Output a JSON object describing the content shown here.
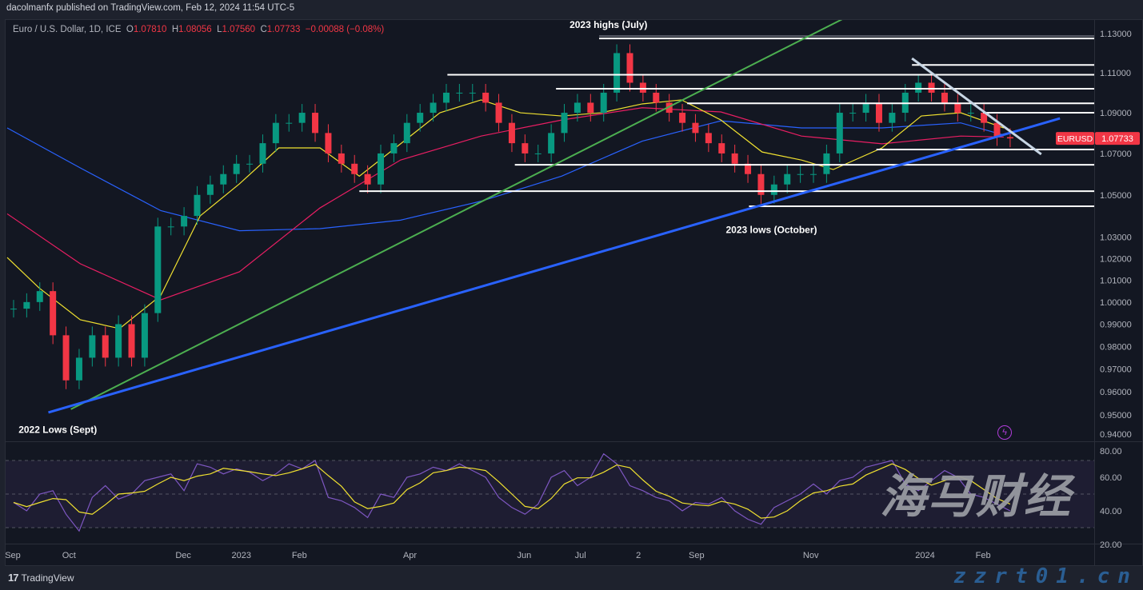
{
  "header": {
    "publisher": "dacolmanfx published on TradingView.com, Feb 12, 2024 11:54 UTC-5"
  },
  "legend": {
    "symbol": "Euro / U.S. Dollar, 1D, ICE",
    "o_label": "O",
    "o": "1.07810",
    "h_label": "H",
    "h": "1.08056",
    "l_label": "L",
    "l": "1.07560",
    "c_label": "C",
    "c": "1.07733",
    "change": "−0.00088 (−0.08%)"
  },
  "price_tag": {
    "symbol": "EURUSD",
    "value": "1.07733",
    "color": "#f23645"
  },
  "footer": {
    "brand": "TradingView",
    "logo": "17"
  },
  "watermark": {
    "cn": "海马财经",
    "site": "zzrt01.cn"
  },
  "colors": {
    "up": "#089981",
    "down": "#f23645",
    "ma_fast": "#f0e130",
    "ma_mid": "#e91e63",
    "ma_slow": "#2962ff",
    "rsi": "#7e57c2",
    "rsi_ma": "#f0e130",
    "trend_green": "#4caf50",
    "trend_blue": "#2962ff",
    "trend_white": "#c8d6e5"
  },
  "icons": {
    "bolt": "lightning-icon"
  },
  "chart_data": {
    "type": "candlestick",
    "symbol": "EURUSD",
    "y_scale": "log",
    "ylim": [
      0.94,
      1.13
    ],
    "y_ticks": [
      "1.13000",
      "1.11000",
      "1.09000",
      "1.07000",
      "1.05000",
      "1.03000",
      "1.02000",
      "1.01000",
      "1.00000",
      "0.99000",
      "0.98000",
      "0.97000",
      "0.96000",
      "0.95000",
      "0.94000"
    ],
    "x_ticks": [
      [
        "2022-09-01",
        "Sep"
      ],
      [
        "2022-10-01",
        "Oct"
      ],
      [
        "2022-12-01",
        "Dec"
      ],
      [
        "2023-01-01",
        "2023"
      ],
      [
        "2023-02-01",
        "Feb"
      ],
      [
        "2023-04-01",
        "Apr"
      ],
      [
        "2023-06-01",
        "Jun"
      ],
      [
        "2023-07-01",
        "Jul"
      ],
      [
        "2023-08-01",
        "2"
      ],
      [
        "2023-09-01",
        "Sep"
      ],
      [
        "2023-11-01",
        "Nov"
      ],
      [
        "2024-01-01",
        "2024"
      ],
      [
        "2024-02-01",
        "Feb"
      ]
    ],
    "closes": [
      [
        "2022-08-29",
        0.997
      ],
      [
        "2022-09-05",
        1.0
      ],
      [
        "2022-09-12",
        1.005
      ],
      [
        "2022-09-19",
        0.985
      ],
      [
        "2022-09-26",
        0.965
      ],
      [
        "2022-10-03",
        0.975
      ],
      [
        "2022-10-10",
        0.985
      ],
      [
        "2022-10-17",
        0.975
      ],
      [
        "2022-10-24",
        0.99
      ],
      [
        "2022-10-31",
        0.975
      ],
      [
        "2022-11-07",
        0.995
      ],
      [
        "2022-11-14",
        1.035
      ],
      [
        "2022-11-21",
        1.035
      ],
      [
        "2022-11-28",
        1.04
      ],
      [
        "2022-12-05",
        1.05
      ],
      [
        "2022-12-12",
        1.055
      ],
      [
        "2022-12-19",
        1.06
      ],
      [
        "2022-12-26",
        1.065
      ],
      [
        "2023-01-02",
        1.065
      ],
      [
        "2023-01-09",
        1.075
      ],
      [
        "2023-01-16",
        1.085
      ],
      [
        "2023-01-23",
        1.085
      ],
      [
        "2023-01-30",
        1.09
      ],
      [
        "2023-02-06",
        1.08
      ],
      [
        "2023-02-13",
        1.07
      ],
      [
        "2023-02-20",
        1.065
      ],
      [
        "2023-02-27",
        1.06
      ],
      [
        "2023-03-06",
        1.055
      ],
      [
        "2023-03-13",
        1.07
      ],
      [
        "2023-03-20",
        1.075
      ],
      [
        "2023-03-27",
        1.085
      ],
      [
        "2023-04-03",
        1.09
      ],
      [
        "2023-04-10",
        1.095
      ],
      [
        "2023-04-17",
        1.1
      ],
      [
        "2023-04-24",
        1.1
      ],
      [
        "2023-05-01",
        1.1
      ],
      [
        "2023-05-08",
        1.095
      ],
      [
        "2023-05-15",
        1.085
      ],
      [
        "2023-05-22",
        1.075
      ],
      [
        "2023-05-29",
        1.07
      ],
      [
        "2023-06-05",
        1.07
      ],
      [
        "2023-06-12",
        1.08
      ],
      [
        "2023-06-19",
        1.09
      ],
      [
        "2023-06-26",
        1.095
      ],
      [
        "2023-07-03",
        1.09
      ],
      [
        "2023-07-10",
        1.1
      ],
      [
        "2023-07-17",
        1.12
      ],
      [
        "2023-07-24",
        1.105
      ],
      [
        "2023-07-31",
        1.1
      ],
      [
        "2023-08-07",
        1.095
      ],
      [
        "2023-08-14",
        1.09
      ],
      [
        "2023-08-21",
        1.085
      ],
      [
        "2023-08-28",
        1.08
      ],
      [
        "2023-09-04",
        1.075
      ],
      [
        "2023-09-11",
        1.07
      ],
      [
        "2023-09-18",
        1.065
      ],
      [
        "2023-09-25",
        1.06
      ],
      [
        "2023-10-02",
        1.05
      ],
      [
        "2023-10-09",
        1.055
      ],
      [
        "2023-10-16",
        1.06
      ],
      [
        "2023-10-23",
        1.06
      ],
      [
        "2023-10-30",
        1.06
      ],
      [
        "2023-11-06",
        1.07
      ],
      [
        "2023-11-13",
        1.09
      ],
      [
        "2023-11-20",
        1.09
      ],
      [
        "2023-11-27",
        1.095
      ],
      [
        "2023-12-04",
        1.085
      ],
      [
        "2023-12-11",
        1.09
      ],
      [
        "2023-12-18",
        1.1
      ],
      [
        "2023-12-25",
        1.105
      ],
      [
        "2024-01-01",
        1.1
      ],
      [
        "2024-01-08",
        1.095
      ],
      [
        "2024-01-15",
        1.09
      ],
      [
        "2024-01-22",
        1.09
      ],
      [
        "2024-01-29",
        1.085
      ],
      [
        "2024-02-05",
        1.078
      ],
      [
        "2024-02-12",
        1.07733
      ]
    ],
    "moving_averages": [
      {
        "key": "ma_slow",
        "points": [
          [
            "2022-08-29",
            1.0825
          ],
          [
            "2022-10-07",
            1.063
          ],
          [
            "2022-11-19",
            1.0425
          ],
          [
            "2022-12-31",
            1.033
          ],
          [
            "2023-02-12",
            1.034
          ],
          [
            "2023-03-27",
            1.038
          ],
          [
            "2023-05-09",
            1.047
          ],
          [
            "2023-06-21",
            1.059
          ],
          [
            "2023-08-03",
            1.076
          ],
          [
            "2023-09-14",
            1.086
          ],
          [
            "2023-10-27",
            1.0825
          ],
          [
            "2023-12-09",
            1.0825
          ],
          [
            "2024-01-20",
            1.085
          ],
          [
            "2024-02-12",
            1.079
          ]
        ]
      },
      {
        "key": "ma_mid",
        "points": [
          [
            "2022-08-29",
            1.041
          ],
          [
            "2022-10-07",
            1.0176
          ],
          [
            "2022-11-19",
            1.001
          ],
          [
            "2022-12-31",
            1.0139
          ],
          [
            "2023-02-12",
            1.0438
          ],
          [
            "2023-03-27",
            1.0668
          ],
          [
            "2023-05-09",
            1.0785
          ],
          [
            "2023-06-21",
            1.0864
          ],
          [
            "2023-08-03",
            1.0925
          ],
          [
            "2023-09-14",
            1.0904
          ],
          [
            "2023-10-27",
            1.0785
          ],
          [
            "2023-12-09",
            1.0747
          ],
          [
            "2024-01-20",
            1.0785
          ],
          [
            "2024-02-12",
            1.078
          ]
        ]
      },
      {
        "key": "ma_fast",
        "points": [
          [
            "2022-08-29",
            1.0205
          ],
          [
            "2022-09-15",
            1.0065
          ],
          [
            "2022-10-07",
            0.992
          ],
          [
            "2022-10-28",
            0.988
          ],
          [
            "2022-11-19",
            1.003
          ],
          [
            "2022-12-10",
            1.04
          ],
          [
            "2022-12-31",
            1.0553
          ],
          [
            "2023-01-21",
            1.0727
          ],
          [
            "2023-02-12",
            1.0727
          ],
          [
            "2023-03-05",
            1.059
          ],
          [
            "2023-03-27",
            1.0747
          ],
          [
            "2023-04-17",
            1.09
          ],
          [
            "2023-05-09",
            1.0964
          ],
          [
            "2023-05-30",
            1.09
          ],
          [
            "2023-06-21",
            1.0884
          ],
          [
            "2023-07-12",
            1.09
          ],
          [
            "2023-08-03",
            1.0944
          ],
          [
            "2023-08-24",
            1.0964
          ],
          [
            "2023-09-14",
            1.0864
          ],
          [
            "2023-10-06",
            1.0707
          ],
          [
            "2023-10-27",
            1.0668
          ],
          [
            "2023-11-13",
            1.0622
          ],
          [
            "2023-12-09",
            1.0727
          ],
          [
            "2023-12-30",
            1.0884
          ],
          [
            "2024-01-20",
            1.09
          ],
          [
            "2024-02-12",
            1.0825
          ]
        ]
      }
    ],
    "horizontal_levels": [
      {
        "price": 1.1275,
        "from": "2023-07-11"
      },
      {
        "price": 1.114,
        "from": "2023-12-25"
      },
      {
        "price": 1.109,
        "from": "2023-04-21"
      },
      {
        "price": 1.102,
        "from": "2023-06-18"
      },
      {
        "price": 1.0947,
        "from": "2023-08-27"
      },
      {
        "price": 1.09,
        "from": "2024-02-01"
      },
      {
        "price": 1.0719,
        "from": "2023-12-06"
      },
      {
        "price": 1.0645,
        "from": "2023-05-27"
      },
      {
        "price": 1.0518,
        "from": "2023-03-05"
      },
      {
        "price": 1.0446,
        "from": "2023-09-29"
      }
    ],
    "trend_lines": [
      {
        "key": "trend_green",
        "from": [
          "2022-10-02",
          0.9524
        ],
        "to": [
          "2023-11-19",
          1.138
        ]
      },
      {
        "key": "trend_blue",
        "from": [
          "2022-09-20",
          0.951
        ],
        "to": [
          "2024-03-13",
          1.0872
        ]
      },
      {
        "key": "trend_white",
        "from": [
          "2023-12-25",
          1.1173
        ],
        "to": [
          "2024-03-03",
          1.0696
        ]
      }
    ],
    "annotations": [
      {
        "text": "2023 highs (July)",
        "date": "2023-07-16",
        "price": 1.1345
      },
      {
        "text": "2022 Lows (Sept)",
        "date": "2022-09-25",
        "price": 0.9435
      },
      {
        "text": "2023 lows (October)",
        "date": "2023-10-11",
        "price": 1.0335
      }
    ],
    "rsi": {
      "ylim": [
        10,
        85
      ],
      "y_ticks": [
        "80.00",
        "60.00",
        "40.00",
        "20.00"
      ],
      "bands": [
        70,
        50,
        30
      ],
      "values": [
        45,
        40,
        50,
        52,
        38,
        28,
        48,
        55,
        47,
        50,
        58,
        60,
        62,
        52,
        68,
        66,
        62,
        65,
        63,
        58,
        62,
        68,
        65,
        70,
        48,
        46,
        42,
        36,
        50,
        48,
        60,
        62,
        66,
        64,
        68,
        64,
        60,
        48,
        42,
        38,
        44,
        60,
        64,
        55,
        60,
        74,
        68,
        55,
        52,
        48,
        46,
        40,
        45,
        44,
        48,
        40,
        35,
        32,
        42,
        46,
        50,
        56,
        50,
        58,
        60,
        66,
        68,
        70,
        56,
        52,
        58,
        64,
        60,
        50,
        48,
        44,
        40
      ]
    }
  }
}
